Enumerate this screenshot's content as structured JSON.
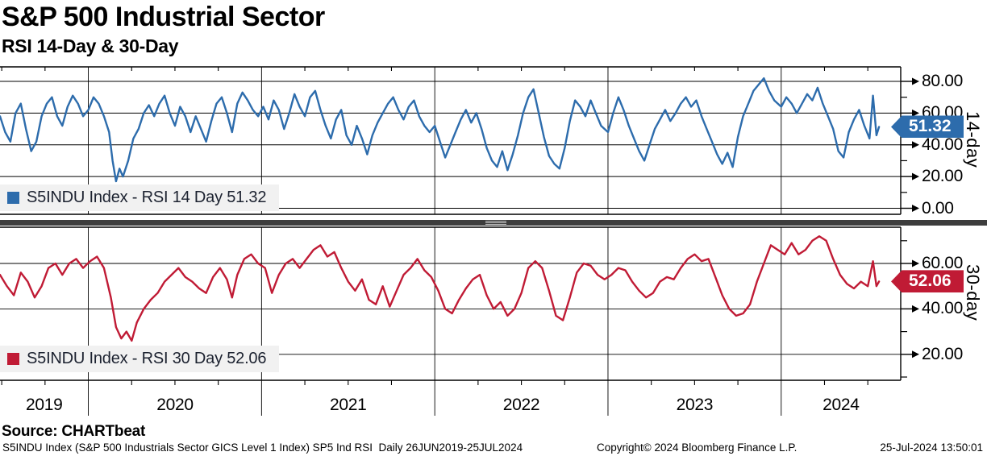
{
  "header": {
    "title": "S&P 500 Industrial Sector",
    "subtitle": "RSI 14-Day & 30-Day"
  },
  "x_axis": {
    "year_labels": [
      "2019",
      "2020",
      "2021",
      "2022",
      "2023",
      "2024"
    ],
    "range_decimal_years": [
      2019.49,
      2024.69
    ],
    "data_range_label": "26JUN2019-25JUL2024"
  },
  "footer": {
    "source": "Source: CHARTbeat",
    "description": "S5INDU Index (S&P 500 Industrials Sector GICS Level 1 Index) SP5 Ind RSI  Daily 26JUN2019-25JUL2024",
    "copyright": "Copyright© 2024 Bloomberg Finance L.P.",
    "datetime": "25-Jul-2024 13:50:01"
  },
  "chart_data": [
    {
      "type": "line",
      "name": "rsi-14-day",
      "axis_label": "14-day",
      "legend_label": "S5INDU Index - RSI 14 Day 51.32",
      "last_value": 51.32,
      "last_value_label": "51.32",
      "color": "#2d6cac",
      "ylim": [
        -4,
        89
      ],
      "yticks": [
        {
          "v": 0,
          "label": "0.00"
        },
        {
          "v": 20,
          "label": "20.00"
        },
        {
          "v": 40,
          "label": "40.00"
        },
        {
          "v": 60,
          "label": "60.00"
        },
        {
          "v": 80,
          "label": "80.00"
        }
      ],
      "minor_yticks": [
        10,
        30,
        50,
        70
      ],
      "x_unit": "decimal_year",
      "points": [
        [
          2019.49,
          58
        ],
        [
          2019.52,
          48
        ],
        [
          2019.55,
          42
        ],
        [
          2019.58,
          60
        ],
        [
          2019.61,
          66
        ],
        [
          2019.64,
          50
        ],
        [
          2019.67,
          36
        ],
        [
          2019.7,
          42
        ],
        [
          2019.73,
          58
        ],
        [
          2019.76,
          66
        ],
        [
          2019.79,
          70
        ],
        [
          2019.82,
          58
        ],
        [
          2019.85,
          52
        ],
        [
          2019.88,
          64
        ],
        [
          2019.91,
          71
        ],
        [
          2019.94,
          66
        ],
        [
          2019.97,
          58
        ],
        [
          2020.0,
          62
        ],
        [
          2020.03,
          70
        ],
        [
          2020.06,
          66
        ],
        [
          2020.09,
          58
        ],
        [
          2020.12,
          48
        ],
        [
          2020.14,
          30
        ],
        [
          2020.16,
          17
        ],
        [
          2020.18,
          25
        ],
        [
          2020.2,
          20
        ],
        [
          2020.23,
          30
        ],
        [
          2020.26,
          44
        ],
        [
          2020.29,
          50
        ],
        [
          2020.32,
          60
        ],
        [
          2020.35,
          65
        ],
        [
          2020.38,
          58
        ],
        [
          2020.41,
          66
        ],
        [
          2020.44,
          71
        ],
        [
          2020.47,
          60
        ],
        [
          2020.5,
          52
        ],
        [
          2020.53,
          64
        ],
        [
          2020.56,
          58
        ],
        [
          2020.59,
          48
        ],
        [
          2020.62,
          58
        ],
        [
          2020.65,
          50
        ],
        [
          2020.68,
          42
        ],
        [
          2020.71,
          55
        ],
        [
          2020.74,
          66
        ],
        [
          2020.77,
          70
        ],
        [
          2020.8,
          60
        ],
        [
          2020.83,
          48
        ],
        [
          2020.86,
          66
        ],
        [
          2020.89,
          73
        ],
        [
          2020.92,
          68
        ],
        [
          2020.95,
          62
        ],
        [
          2020.98,
          58
        ],
        [
          2021.01,
          64
        ],
        [
          2021.04,
          56
        ],
        [
          2021.07,
          68
        ],
        [
          2021.1,
          62
        ],
        [
          2021.13,
          50
        ],
        [
          2021.16,
          60
        ],
        [
          2021.19,
          72
        ],
        [
          2021.22,
          64
        ],
        [
          2021.25,
          58
        ],
        [
          2021.28,
          70
        ],
        [
          2021.31,
          74
        ],
        [
          2021.34,
          62
        ],
        [
          2021.37,
          52
        ],
        [
          2021.4,
          44
        ],
        [
          2021.43,
          56
        ],
        [
          2021.46,
          62
        ],
        [
          2021.49,
          46
        ],
        [
          2021.52,
          40
        ],
        [
          2021.55,
          52
        ],
        [
          2021.58,
          44
        ],
        [
          2021.61,
          34
        ],
        [
          2021.64,
          46
        ],
        [
          2021.67,
          54
        ],
        [
          2021.7,
          60
        ],
        [
          2021.73,
          66
        ],
        [
          2021.76,
          70
        ],
        [
          2021.79,
          62
        ],
        [
          2021.82,
          56
        ],
        [
          2021.85,
          64
        ],
        [
          2021.88,
          68
        ],
        [
          2021.91,
          58
        ],
        [
          2021.94,
          52
        ],
        [
          2021.97,
          48
        ],
        [
          2022.0,
          52
        ],
        [
          2022.03,
          42
        ],
        [
          2022.06,
          32
        ],
        [
          2022.09,
          40
        ],
        [
          2022.12,
          48
        ],
        [
          2022.15,
          56
        ],
        [
          2022.18,
          62
        ],
        [
          2022.21,
          54
        ],
        [
          2022.24,
          60
        ],
        [
          2022.27,
          50
        ],
        [
          2022.3,
          38
        ],
        [
          2022.33,
          30
        ],
        [
          2022.36,
          26
        ],
        [
          2022.39,
          36
        ],
        [
          2022.42,
          24
        ],
        [
          2022.45,
          34
        ],
        [
          2022.48,
          46
        ],
        [
          2022.51,
          60
        ],
        [
          2022.54,
          70
        ],
        [
          2022.57,
          75
        ],
        [
          2022.6,
          60
        ],
        [
          2022.63,
          45
        ],
        [
          2022.66,
          33
        ],
        [
          2022.69,
          28
        ],
        [
          2022.72,
          25
        ],
        [
          2022.75,
          38
        ],
        [
          2022.78,
          55
        ],
        [
          2022.81,
          68
        ],
        [
          2022.84,
          64
        ],
        [
          2022.87,
          58
        ],
        [
          2022.9,
          68
        ],
        [
          2022.93,
          60
        ],
        [
          2022.96,
          52
        ],
        [
          2023.0,
          48
        ],
        [
          2023.03,
          60
        ],
        [
          2023.06,
          70
        ],
        [
          2023.09,
          62
        ],
        [
          2023.12,
          52
        ],
        [
          2023.15,
          44
        ],
        [
          2023.18,
          36
        ],
        [
          2023.21,
          30
        ],
        [
          2023.24,
          40
        ],
        [
          2023.27,
          50
        ],
        [
          2023.3,
          56
        ],
        [
          2023.33,
          62
        ],
        [
          2023.36,
          55
        ],
        [
          2023.39,
          60
        ],
        [
          2023.42,
          66
        ],
        [
          2023.45,
          70
        ],
        [
          2023.48,
          64
        ],
        [
          2023.51,
          68
        ],
        [
          2023.54,
          58
        ],
        [
          2023.57,
          50
        ],
        [
          2023.6,
          42
        ],
        [
          2023.63,
          34
        ],
        [
          2023.66,
          28
        ],
        [
          2023.69,
          35
        ],
        [
          2023.72,
          26
        ],
        [
          2023.75,
          45
        ],
        [
          2023.78,
          58
        ],
        [
          2023.81,
          66
        ],
        [
          2023.84,
          74
        ],
        [
          2023.87,
          78
        ],
        [
          2023.9,
          82
        ],
        [
          2023.93,
          74
        ],
        [
          2023.96,
          68
        ],
        [
          2024.0,
          64
        ],
        [
          2024.03,
          70
        ],
        [
          2024.06,
          66
        ],
        [
          2024.09,
          60
        ],
        [
          2024.12,
          66
        ],
        [
          2024.15,
          72
        ],
        [
          2024.18,
          68
        ],
        [
          2024.21,
          76
        ],
        [
          2024.24,
          66
        ],
        [
          2024.27,
          58
        ],
        [
          2024.3,
          50
        ],
        [
          2024.33,
          36
        ],
        [
          2024.36,
          32
        ],
        [
          2024.39,
          48
        ],
        [
          2024.42,
          56
        ],
        [
          2024.45,
          62
        ],
        [
          2024.48,
          52
        ],
        [
          2024.51,
          44
        ],
        [
          2024.53,
          71
        ],
        [
          2024.55,
          46
        ],
        [
          2024.565,
          51.32
        ]
      ]
    },
    {
      "type": "line",
      "name": "rsi-30-day",
      "axis_label": "30-day",
      "legend_label": "S5INDU Index - RSI 30 Day 52.06",
      "last_value": 52.06,
      "last_value_label": "52.06",
      "color": "#c01b35",
      "ylim": [
        8.7,
        76
      ],
      "yticks": [
        {
          "v": 20,
          "label": "20.00"
        },
        {
          "v": 40,
          "label": "40.00"
        },
        {
          "v": 60,
          "label": "60.00"
        }
      ],
      "minor_yticks": [
        10,
        30,
        50,
        70
      ],
      "x_unit": "decimal_year",
      "points": [
        [
          2019.49,
          55
        ],
        [
          2019.53,
          50
        ],
        [
          2019.57,
          46
        ],
        [
          2019.61,
          56
        ],
        [
          2019.65,
          52
        ],
        [
          2019.69,
          45
        ],
        [
          2019.73,
          50
        ],
        [
          2019.77,
          58
        ],
        [
          2019.81,
          60
        ],
        [
          2019.85,
          55
        ],
        [
          2019.89,
          60
        ],
        [
          2019.93,
          62
        ],
        [
          2019.97,
          58
        ],
        [
          2020.01,
          61
        ],
        [
          2020.05,
          63
        ],
        [
          2020.09,
          58
        ],
        [
          2020.13,
          45
        ],
        [
          2020.16,
          32
        ],
        [
          2020.19,
          27
        ],
        [
          2020.22,
          30
        ],
        [
          2020.25,
          26
        ],
        [
          2020.28,
          34
        ],
        [
          2020.32,
          40
        ],
        [
          2020.36,
          44
        ],
        [
          2020.4,
          47
        ],
        [
          2020.44,
          52
        ],
        [
          2020.48,
          55
        ],
        [
          2020.52,
          58
        ],
        [
          2020.56,
          54
        ],
        [
          2020.6,
          52
        ],
        [
          2020.64,
          49
        ],
        [
          2020.68,
          47
        ],
        [
          2020.72,
          54
        ],
        [
          2020.76,
          58
        ],
        [
          2020.8,
          53
        ],
        [
          2020.83,
          45
        ],
        [
          2020.86,
          55
        ],
        [
          2020.9,
          62
        ],
        [
          2020.94,
          64
        ],
        [
          2020.98,
          60
        ],
        [
          2021.02,
          58
        ],
        [
          2021.06,
          47
        ],
        [
          2021.1,
          55
        ],
        [
          2021.14,
          60
        ],
        [
          2021.18,
          62
        ],
        [
          2021.22,
          58
        ],
        [
          2021.26,
          62
        ],
        [
          2021.3,
          66
        ],
        [
          2021.34,
          68
        ],
        [
          2021.38,
          63
        ],
        [
          2021.42,
          65
        ],
        [
          2021.46,
          58
        ],
        [
          2021.5,
          52
        ],
        [
          2021.54,
          48
        ],
        [
          2021.58,
          53
        ],
        [
          2021.62,
          44
        ],
        [
          2021.66,
          42
        ],
        [
          2021.7,
          50
        ],
        [
          2021.74,
          41
        ],
        [
          2021.78,
          48
        ],
        [
          2021.82,
          55
        ],
        [
          2021.86,
          58
        ],
        [
          2021.9,
          62
        ],
        [
          2021.94,
          57
        ],
        [
          2021.98,
          54
        ],
        [
          2022.02,
          48
        ],
        [
          2022.06,
          40
        ],
        [
          2022.1,
          38
        ],
        [
          2022.14,
          44
        ],
        [
          2022.18,
          49
        ],
        [
          2022.22,
          53
        ],
        [
          2022.26,
          55
        ],
        [
          2022.3,
          46
        ],
        [
          2022.34,
          40
        ],
        [
          2022.38,
          43
        ],
        [
          2022.42,
          37
        ],
        [
          2022.46,
          40
        ],
        [
          2022.5,
          47
        ],
        [
          2022.54,
          58
        ],
        [
          2022.58,
          61
        ],
        [
          2022.62,
          58
        ],
        [
          2022.66,
          48
        ],
        [
          2022.7,
          37
        ],
        [
          2022.74,
          35
        ],
        [
          2022.78,
          45
        ],
        [
          2022.82,
          56
        ],
        [
          2022.86,
          60
        ],
        [
          2022.9,
          59
        ],
        [
          2022.94,
          55
        ],
        [
          2022.98,
          53
        ],
        [
          2023.02,
          55
        ],
        [
          2023.06,
          58
        ],
        [
          2023.1,
          57
        ],
        [
          2023.14,
          52
        ],
        [
          2023.18,
          48
        ],
        [
          2023.22,
          45
        ],
        [
          2023.26,
          47
        ],
        [
          2023.3,
          52
        ],
        [
          2023.34,
          54
        ],
        [
          2023.38,
          53
        ],
        [
          2023.42,
          58
        ],
        [
          2023.46,
          62
        ],
        [
          2023.5,
          64
        ],
        [
          2023.54,
          61
        ],
        [
          2023.58,
          62
        ],
        [
          2023.62,
          54
        ],
        [
          2023.66,
          46
        ],
        [
          2023.7,
          40
        ],
        [
          2023.74,
          37
        ],
        [
          2023.78,
          38
        ],
        [
          2023.82,
          42
        ],
        [
          2023.86,
          52
        ],
        [
          2023.9,
          60
        ],
        [
          2023.94,
          68
        ],
        [
          2023.98,
          66
        ],
        [
          2024.02,
          64
        ],
        [
          2024.06,
          69
        ],
        [
          2024.1,
          64
        ],
        [
          2024.14,
          66
        ],
        [
          2024.18,
          70
        ],
        [
          2024.22,
          72
        ],
        [
          2024.26,
          70
        ],
        [
          2024.3,
          62
        ],
        [
          2024.34,
          55
        ],
        [
          2024.38,
          51
        ],
        [
          2024.42,
          49
        ],
        [
          2024.46,
          52
        ],
        [
          2024.5,
          50
        ],
        [
          2024.53,
          61
        ],
        [
          2024.55,
          50
        ],
        [
          2024.565,
          52.06
        ]
      ]
    }
  ]
}
